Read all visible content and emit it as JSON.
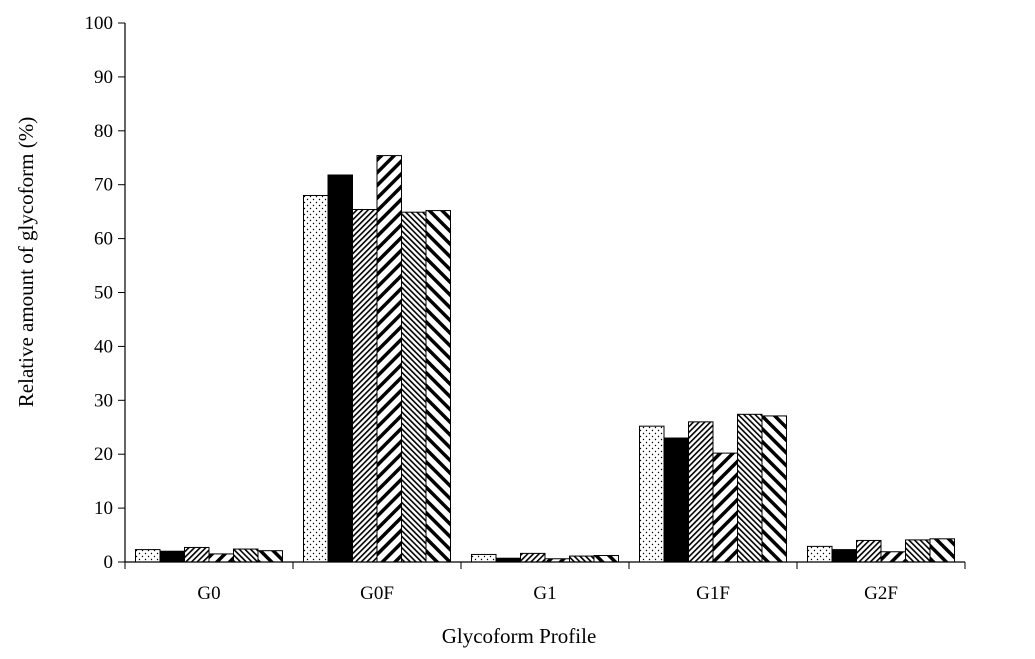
{
  "chart_data": {
    "type": "bar",
    "title": "",
    "xlabel": "Glycoform Profile",
    "ylabel": "Relative amount of glycoform (%)",
    "ylim": [
      0,
      100
    ],
    "yticks": [
      0,
      10,
      20,
      30,
      40,
      50,
      60,
      70,
      80,
      90,
      100
    ],
    "grid": false,
    "legend": "none",
    "categories": [
      "G0",
      "G0F",
      "G1",
      "G1F",
      "G2F"
    ],
    "series": [
      {
        "pattern": "dots",
        "values": [
          2.3,
          68.0,
          1.4,
          25.2,
          2.9
        ]
      },
      {
        "pattern": "solid-black",
        "values": [
          2.0,
          71.8,
          0.7,
          23.0,
          2.3
        ]
      },
      {
        "pattern": "dense-diagonal",
        "values": [
          2.7,
          65.4,
          1.6,
          26.0,
          4.0
        ]
      },
      {
        "pattern": "wide-diagonal",
        "values": [
          1.5,
          75.4,
          0.6,
          20.2,
          1.9
        ]
      },
      {
        "pattern": "dense-back-diagonal",
        "values": [
          2.4,
          64.9,
          1.1,
          27.4,
          4.1
        ]
      },
      {
        "pattern": "wide-back-diagonal",
        "values": [
          2.1,
          65.2,
          1.2,
          27.1,
          4.3
        ]
      }
    ],
    "colors": {
      "axis": "#000000",
      "bar_outline": "#000000",
      "background": "#ffffff"
    }
  }
}
